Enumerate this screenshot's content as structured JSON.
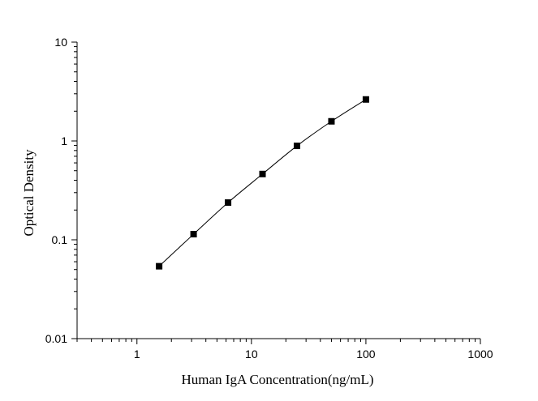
{
  "chart_data": {
    "type": "scatter",
    "title": "",
    "xlabel": "Human IgA Concentration(ng/mL)",
    "ylabel": "Optical Density",
    "x_scale": "log",
    "y_scale": "log",
    "xlim": [
      0.3,
      1000
    ],
    "ylim": [
      0.01,
      10
    ],
    "x_ticks": [
      {
        "value": 1,
        "label": "1"
      },
      {
        "value": 10,
        "label": "10"
      },
      {
        "value": 100,
        "label": "100"
      },
      {
        "value": 1000,
        "label": "1000"
      }
    ],
    "y_ticks": [
      {
        "value": 0.01,
        "label": "0.01"
      },
      {
        "value": 0.1,
        "label": "0.1"
      },
      {
        "value": 1,
        "label": "1"
      },
      {
        "value": 10,
        "label": "10"
      }
    ],
    "grid": false,
    "legend": "none",
    "series": [
      {
        "marker": "square",
        "color": "#000000",
        "fit_line": true,
        "x": [
          1.5625,
          3.125,
          6.25,
          12.5,
          25,
          50,
          100
        ],
        "y": [
          0.054,
          0.114,
          0.238,
          0.463,
          0.892,
          1.58,
          2.63
        ]
      }
    ]
  }
}
